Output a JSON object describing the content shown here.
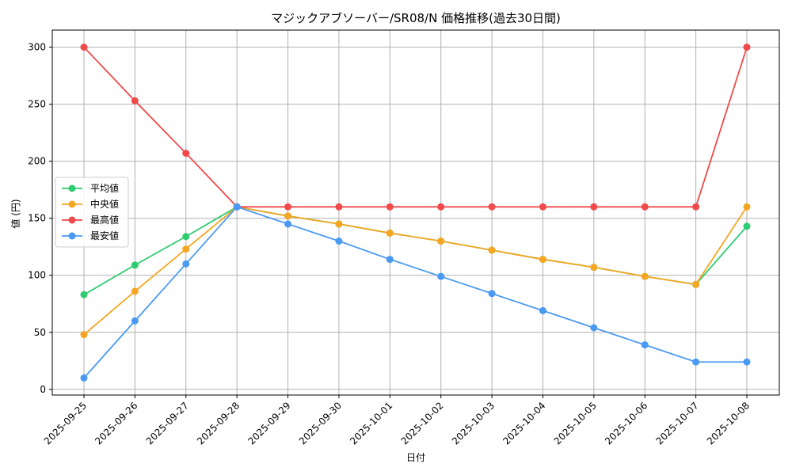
{
  "chart_data": {
    "type": "line",
    "title": "マジックアブソーバー/SR08/N 価格推移(過去30日間)",
    "xlabel": "日付",
    "ylabel": "値 (円)",
    "ylim": [
      -5,
      315
    ],
    "yticks": [
      0,
      50,
      100,
      150,
      200,
      250,
      300
    ],
    "grid": true,
    "legend_position": "center-left",
    "categories": [
      "2025-09-25",
      "2025-09-26",
      "2025-09-27",
      "2025-09-28",
      "2025-09-29",
      "2025-09-30",
      "2025-10-01",
      "2025-10-02",
      "2025-10-03",
      "2025-10-04",
      "2025-10-05",
      "2025-10-06",
      "2025-10-07",
      "2025-10-08"
    ],
    "series": [
      {
        "name": "平均値",
        "color": "#2ecc71",
        "values": [
          83,
          109,
          134,
          160,
          152,
          145,
          137,
          130,
          122,
          114,
          107,
          99,
          92,
          143
        ]
      },
      {
        "name": "中央値",
        "color": "#f5a623",
        "values": [
          48,
          86,
          123,
          160,
          152,
          145,
          137,
          130,
          122,
          114,
          107,
          99,
          92,
          160
        ]
      },
      {
        "name": "最高値",
        "color": "#f04a4a",
        "values": [
          300,
          253,
          207,
          160,
          160,
          160,
          160,
          160,
          160,
          160,
          160,
          160,
          160,
          300
        ]
      },
      {
        "name": "最安値",
        "color": "#4a9af4",
        "values": [
          10,
          60,
          110,
          160,
          145,
          130,
          114,
          99,
          84,
          69,
          54,
          39,
          24,
          24
        ]
      }
    ]
  }
}
